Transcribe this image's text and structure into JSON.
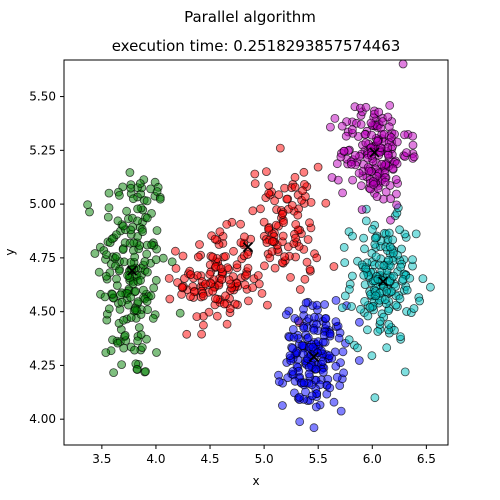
{
  "figure": {
    "suptitle": "Parallel algorithm",
    "title": "execution time: 0.2518293857574463"
  },
  "chart_data": {
    "type": "scatter",
    "title": "execution time: 0.2518293857574463",
    "xlabel": "x",
    "ylabel": "y",
    "xlim": [
      3.15,
      6.7
    ],
    "ylim": [
      3.88,
      5.67
    ],
    "xticks": [
      "3.5",
      "4.0",
      "4.5",
      "5.0",
      "5.5",
      "6.0",
      "6.5"
    ],
    "yticks": [
      "4.00",
      "4.25",
      "4.50",
      "4.75",
      "5.00",
      "5.25",
      "5.50"
    ],
    "grid": false,
    "clusters": [
      {
        "color": "#008000",
        "center": [
          3.78,
          4.69
        ],
        "spread": [
          0.16,
          0.27
        ],
        "count": 200
      },
      {
        "color": "#ff0000",
        "center": [
          4.55,
          4.65
        ],
        "spread": [
          0.17,
          0.11
        ],
        "count": 120
      },
      {
        "color": "#ff0000",
        "center": [
          5.17,
          4.88
        ],
        "spread": [
          0.17,
          0.15
        ],
        "count": 110
      },
      {
        "color": "#0000ff",
        "center": [
          5.46,
          4.29
        ],
        "spread": [
          0.14,
          0.12
        ],
        "count": 180
      },
      {
        "color": "#00bfbf",
        "center": [
          6.1,
          4.64
        ],
        "spread": [
          0.15,
          0.14
        ],
        "count": 180
      },
      {
        "color": "#bf00bf",
        "center": [
          6.02,
          5.24
        ],
        "spread": [
          0.16,
          0.12
        ],
        "count": 180
      }
    ],
    "centroids": [
      {
        "x": 3.78,
        "y": 4.69
      },
      {
        "x": 4.85,
        "y": 4.8
      },
      {
        "x": 5.46,
        "y": 4.29
      },
      {
        "x": 6.1,
        "y": 4.64
      },
      {
        "x": 6.02,
        "y": 5.24
      }
    ]
  }
}
